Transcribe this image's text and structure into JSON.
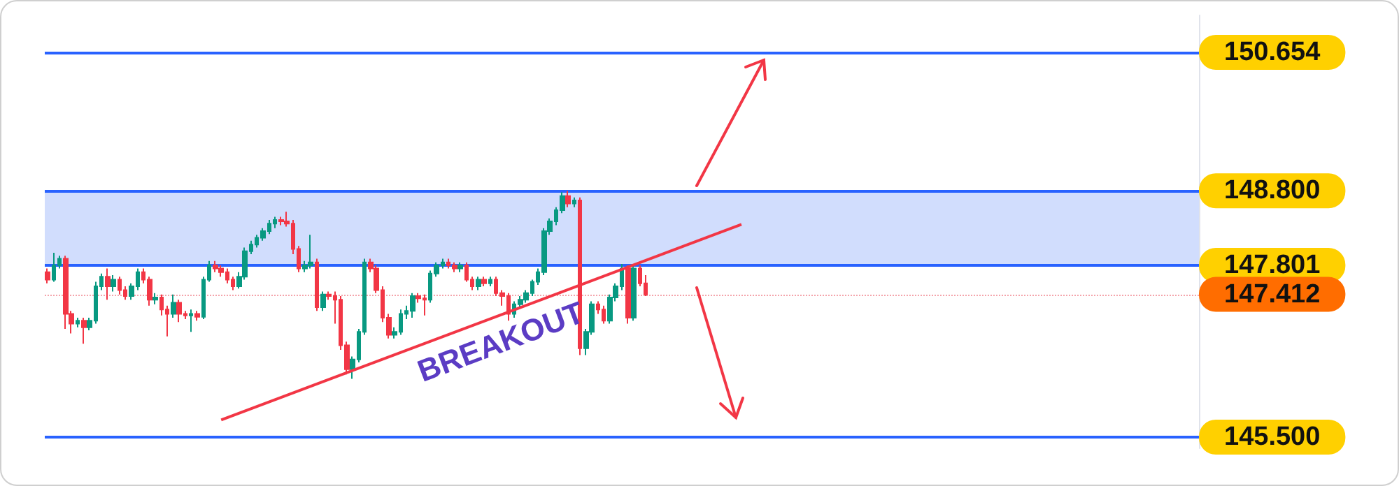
{
  "chart_data": {
    "type": "candlestick",
    "categories": [
      null,
      null,
      null,
      null,
      null,
      null,
      null,
      null,
      null,
      null,
      null,
      null,
      null,
      null,
      null,
      null,
      null,
      null,
      null,
      null,
      null,
      null,
      null,
      null,
      null,
      null,
      null,
      null,
      null,
      null,
      null,
      null,
      null,
      null,
      null,
      null,
      null,
      null,
      null,
      null,
      null,
      null,
      null,
      null,
      null,
      null,
      null,
      null,
      null,
      null,
      null,
      null,
      null,
      null,
      null,
      null,
      null,
      null,
      null,
      null,
      null,
      null,
      null,
      null,
      null,
      null,
      null,
      null,
      null,
      null,
      null,
      null,
      null,
      null,
      null,
      null,
      null,
      null,
      null,
      null,
      null,
      null,
      null,
      null,
      null,
      null,
      null,
      null,
      null,
      null,
      null,
      null,
      null,
      null,
      null,
      null,
      null,
      null,
      null,
      null,
      null,
      null,
      null,
      null,
      null,
      null,
      null,
      null,
      null,
      null,
      null,
      null,
      null,
      null,
      null,
      null,
      null,
      null,
      null,
      null,
      null,
      null,
      null,
      null,
      null,
      null,
      null,
      null,
      null,
      null,
      null,
      null,
      null,
      null,
      null,
      null,
      null,
      null,
      null,
      null,
      null,
      null,
      null,
      null,
      null,
      null,
      null,
      null,
      null,
      null,
      null,
      null,
      null,
      null,
      null,
      null,
      null,
      null,
      null,
      null,
      null,
      null,
      null,
      null,
      null,
      null,
      null,
      null,
      null,
      null,
      null,
      null,
      null,
      null,
      null,
      null,
      null,
      null,
      null,
      null,
      null,
      null,
      null,
      null,
      null,
      null,
      null,
      null,
      null,
      null,
      null,
      null,
      null
    ],
    "ohlc": [
      [
        147.71,
        147.76,
        147.56,
        147.61
      ],
      [
        147.61,
        147.97,
        147.58,
        147.8
      ],
      [
        147.8,
        147.93,
        147.76,
        147.89
      ],
      [
        147.89,
        147.93,
        146.95,
        147.15
      ],
      [
        147.15,
        147.19,
        146.89,
        147.02
      ],
      [
        147.02,
        147.1,
        146.97,
        147.06
      ],
      [
        147.06,
        147.1,
        146.75,
        146.97
      ],
      [
        146.97,
        147.1,
        146.93,
        147.06
      ],
      [
        147.06,
        147.58,
        147.02,
        147.52
      ],
      [
        147.52,
        147.69,
        147.47,
        147.65
      ],
      [
        147.65,
        147.76,
        147.34,
        147.52
      ],
      [
        147.52,
        147.67,
        147.45,
        147.61
      ],
      [
        147.61,
        147.65,
        147.41,
        147.47
      ],
      [
        147.47,
        147.52,
        147.34,
        147.39
      ],
      [
        147.39,
        147.56,
        147.34,
        147.52
      ],
      [
        147.52,
        147.76,
        147.47,
        147.71
      ],
      [
        147.71,
        147.76,
        147.56,
        147.61
      ],
      [
        147.61,
        147.65,
        147.26,
        147.34
      ],
      [
        147.34,
        147.43,
        147.28,
        147.37
      ],
      [
        147.37,
        147.41,
        147.13,
        147.21
      ],
      [
        147.21,
        147.26,
        146.85,
        147.15
      ],
      [
        147.15,
        147.41,
        147.1,
        147.3
      ],
      [
        147.3,
        147.34,
        147.04,
        147.15
      ],
      [
        147.15,
        147.19,
        147.08,
        147.13
      ],
      [
        147.13,
        147.21,
        146.91,
        147.15
      ],
      [
        147.15,
        147.19,
        147.06,
        147.11
      ],
      [
        147.11,
        147.65,
        147.08,
        147.61
      ],
      [
        147.61,
        147.86,
        147.58,
        147.8
      ],
      [
        147.8,
        147.86,
        147.71,
        147.76
      ],
      [
        147.76,
        147.8,
        147.65,
        147.71
      ],
      [
        147.71,
        147.76,
        147.56,
        147.61
      ],
      [
        147.61,
        147.65,
        147.47,
        147.52
      ],
      [
        147.52,
        147.71,
        147.49,
        147.65
      ],
      [
        147.65,
        148.04,
        147.61,
        147.99
      ],
      [
        147.99,
        148.13,
        147.95,
        148.08
      ],
      [
        148.08,
        148.21,
        148.04,
        148.17
      ],
      [
        148.17,
        148.3,
        148.13,
        148.26
      ],
      [
        148.26,
        148.41,
        148.22,
        148.36
      ],
      [
        148.36,
        148.45,
        148.3,
        148.41
      ],
      [
        148.41,
        148.45,
        148.34,
        148.39
      ],
      [
        148.39,
        148.52,
        148.32,
        148.36
      ],
      [
        148.36,
        148.41,
        147.95,
        148.02
      ],
      [
        148.02,
        148.06,
        147.71,
        147.76
      ],
      [
        147.76,
        147.86,
        147.71,
        147.8
      ],
      [
        147.8,
        148.21,
        147.76,
        147.84
      ],
      [
        147.84,
        147.89,
        147.19,
        147.24
      ],
      [
        147.24,
        147.45,
        147.19,
        147.41
      ],
      [
        147.41,
        147.45,
        147.34,
        147.39
      ],
      [
        147.39,
        147.45,
        147.02,
        147.34
      ],
      [
        147.34,
        147.39,
        146.67,
        146.73
      ],
      [
        146.73,
        146.78,
        146.34,
        146.41
      ],
      [
        146.41,
        146.58,
        146.28,
        146.54
      ],
      [
        146.54,
        146.95,
        146.5,
        146.91
      ],
      [
        146.91,
        147.89,
        146.87,
        147.84
      ],
      [
        147.84,
        147.89,
        147.71,
        147.76
      ],
      [
        147.76,
        147.8,
        147.43,
        147.47
      ],
      [
        147.47,
        147.52,
        147.04,
        147.1
      ],
      [
        147.1,
        147.15,
        146.82,
        146.87
      ],
      [
        146.87,
        146.97,
        146.82,
        146.91
      ],
      [
        146.91,
        147.21,
        146.87,
        147.15
      ],
      [
        147.15,
        147.26,
        147.08,
        147.19
      ],
      [
        147.19,
        147.43,
        147.1,
        147.39
      ],
      [
        147.39,
        147.43,
        147.3,
        147.36
      ],
      [
        147.36,
        147.41,
        147.13,
        147.34
      ],
      [
        147.34,
        147.73,
        147.3,
        147.69
      ],
      [
        147.69,
        147.84,
        147.65,
        147.8
      ],
      [
        147.8,
        147.89,
        147.76,
        147.84
      ],
      [
        147.84,
        147.89,
        147.76,
        147.8
      ],
      [
        147.8,
        147.84,
        147.71,
        147.76
      ],
      [
        147.76,
        147.84,
        147.71,
        147.8
      ],
      [
        147.8,
        147.84,
        147.58,
        147.61
      ],
      [
        147.61,
        147.65,
        147.47,
        147.52
      ],
      [
        147.52,
        147.65,
        147.47,
        147.61
      ],
      [
        147.61,
        147.65,
        147.52,
        147.56
      ],
      [
        147.56,
        147.65,
        147.52,
        147.61
      ],
      [
        147.61,
        147.65,
        147.39,
        147.43
      ],
      [
        147.43,
        147.47,
        147.26,
        147.39
      ],
      [
        147.39,
        147.43,
        147.06,
        147.15
      ],
      [
        147.15,
        147.32,
        147.1,
        147.28
      ],
      [
        147.28,
        147.39,
        147.24,
        147.34
      ],
      [
        147.34,
        147.47,
        147.3,
        147.43
      ],
      [
        147.43,
        147.61,
        147.39,
        147.58
      ],
      [
        147.58,
        147.76,
        147.54,
        147.71
      ],
      [
        147.71,
        148.3,
        147.67,
        148.26
      ],
      [
        148.26,
        148.43,
        148.21,
        148.39
      ],
      [
        148.39,
        148.58,
        148.34,
        148.54
      ],
      [
        148.54,
        148.78,
        148.5,
        148.73
      ],
      [
        148.73,
        148.8,
        148.58,
        148.63
      ],
      [
        148.63,
        148.71,
        148.58,
        148.67
      ],
      [
        148.67,
        148.71,
        146.6,
        146.69
      ],
      [
        146.69,
        146.95,
        146.6,
        146.91
      ],
      [
        146.91,
        147.32,
        146.87,
        147.28
      ],
      [
        147.28,
        147.32,
        147.15,
        147.21
      ],
      [
        147.21,
        147.26,
        147.02,
        147.06
      ],
      [
        147.06,
        147.41,
        147.02,
        147.37
      ],
      [
        147.37,
        147.56,
        147.32,
        147.52
      ],
      [
        147.52,
        147.82,
        147.47,
        147.76
      ],
      [
        147.76,
        147.8,
        147.02,
        147.1
      ],
      [
        147.1,
        147.82,
        147.06,
        147.76
      ],
      [
        147.76,
        147.8,
        147.52,
        147.56
      ],
      [
        147.56,
        147.67,
        147.39,
        147.41
      ],
      null,
      null,
      null,
      null,
      null,
      null,
      null,
      null,
      null,
      null,
      null,
      null,
      null,
      null,
      null,
      null,
      null,
      null,
      null,
      null,
      null,
      null,
      null,
      null,
      null,
      null,
      null,
      null,
      null,
      null,
      null,
      null,
      null,
      null,
      null,
      null,
      null,
      null,
      null,
      null,
      null,
      null,
      null,
      null,
      null,
      null,
      null,
      null,
      null,
      null,
      null,
      null,
      null,
      null,
      null,
      null,
      null,
      null,
      null,
      null,
      null,
      null,
      null,
      null,
      null,
      null,
      null,
      null,
      null,
      null,
      null,
      null,
      null,
      null,
      null,
      null,
      null,
      null,
      null,
      null,
      null,
      null,
      null,
      null,
      null,
      null,
      null,
      null,
      null,
      null,
      null,
      null
    ],
    "series": [
      {
        "type": "line",
        "color": "#f23645",
        "values": [
          null,
          null,
          null,
          null,
          null,
          null,
          null,
          null,
          null,
          null,
          null,
          null,
          null,
          null,
          null,
          null,
          null,
          null,
          null,
          null,
          null,
          null,
          null,
          null,
          null,
          null,
          null,
          null,
          null,
          145.73,
          null,
          null,
          null,
          null,
          null,
          null,
          null,
          null,
          null,
          null,
          null,
          null,
          null,
          null,
          null,
          null,
          null,
          null,
          null,
          null,
          null,
          null,
          null,
          null,
          null,
          null,
          null,
          null,
          null,
          null,
          null,
          null,
          null,
          null,
          null,
          null,
          null,
          null,
          null,
          null,
          null,
          null,
          null,
          null,
          null,
          null,
          null,
          null,
          null,
          null,
          null,
          null,
          null,
          null,
          null,
          null,
          null,
          null,
          null,
          null,
          null,
          null,
          null,
          null,
          null,
          null,
          null,
          null,
          null,
          null,
          null,
          null,
          null,
          null,
          null,
          null,
          null,
          null,
          null,
          null,
          null,
          null,
          null,
          null,
          null,
          null,
          148.35,
          null,
          null,
          null,
          null,
          null,
          null,
          null,
          null,
          null,
          null,
          null,
          null,
          null,
          null,
          null,
          null,
          null,
          null,
          null,
          null,
          null,
          null,
          null,
          null,
          null,
          null,
          null,
          null,
          null,
          null,
          null,
          null,
          null,
          null,
          null,
          null,
          null,
          null,
          null,
          null,
          null,
          null,
          null,
          null,
          null,
          null,
          null,
          null,
          null,
          null,
          null,
          null,
          null,
          null,
          null,
          null,
          null,
          null,
          null,
          null,
          null,
          null,
          null,
          null,
          null,
          null,
          null,
          null,
          null,
          null,
          null,
          null,
          null,
          null,
          null,
          null
        ]
      }
    ],
    "ylim": [
      145.35,
      151.15
    ],
    "yticks": [
      150.654,
      {
        "value": 148.8,
        "label": "148.800"
      },
      147.801,
      147.412,
      {
        "value": 145.5,
        "label": "145.500"
      }
    ],
    "tick_labels": "y",
    "ref_lines": [
      {
        "axis": "y",
        "value": 150.654,
        "color": "#2962ff",
        "line_style": "solid"
      },
      {
        "axis": "y",
        "value": 148.8,
        "color": "#2962ff",
        "line_style": "solid"
      },
      {
        "axis": "y",
        "value": 147.801,
        "color": "#2962ff",
        "line_style": "solid"
      },
      {
        "axis": "y",
        "value": 147.412,
        "color": "#f4a4ab",
        "line_style": "dotted"
      },
      {
        "axis": "y",
        "value": 145.5,
        "color": "#2962ff",
        "line_style": "solid"
      }
    ],
    "bands": [
      {
        "axis": "y",
        "from": 147.801,
        "to": 148.8,
        "color": "#d1ddfd"
      }
    ],
    "annotations": [
      "BREAKOUT"
    ]
  }
}
